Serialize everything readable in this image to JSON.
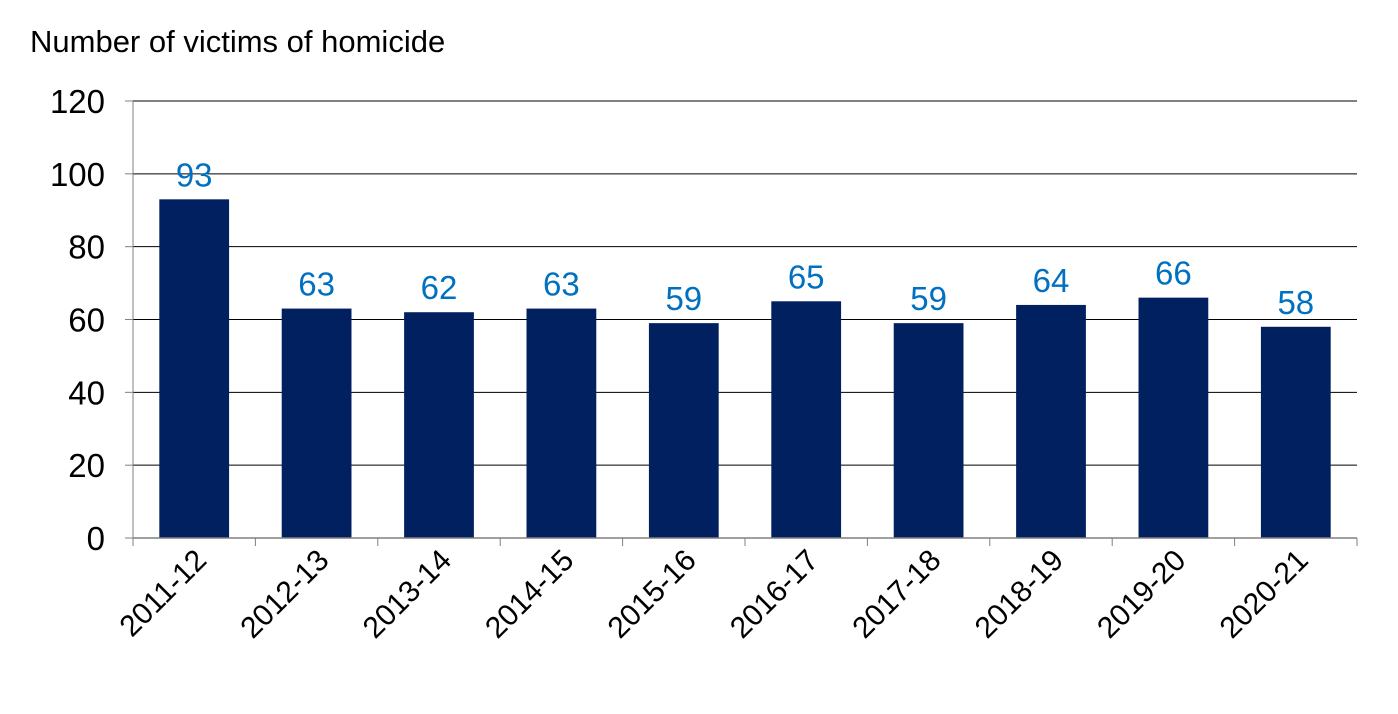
{
  "chart_data": {
    "type": "bar",
    "title": "",
    "ylabel": "Number of victims of homicide",
    "xlabel": "",
    "categories": [
      "2011-12",
      "2012-13",
      "2013-14",
      "2014-15",
      "2015-16",
      "2016-17",
      "2017-18",
      "2018-19",
      "2019-20",
      "2020-21"
    ],
    "values": [
      93,
      63,
      62,
      63,
      59,
      65,
      59,
      64,
      66,
      58
    ],
    "ylim": [
      0,
      120
    ],
    "yticks": [
      0,
      20,
      40,
      60,
      80,
      100,
      120
    ],
    "grid": true,
    "legend": "none",
    "colors": {
      "bar": "#002060",
      "data_label": "#0070C0",
      "grid": "#000000",
      "axis": "#808080"
    }
  }
}
